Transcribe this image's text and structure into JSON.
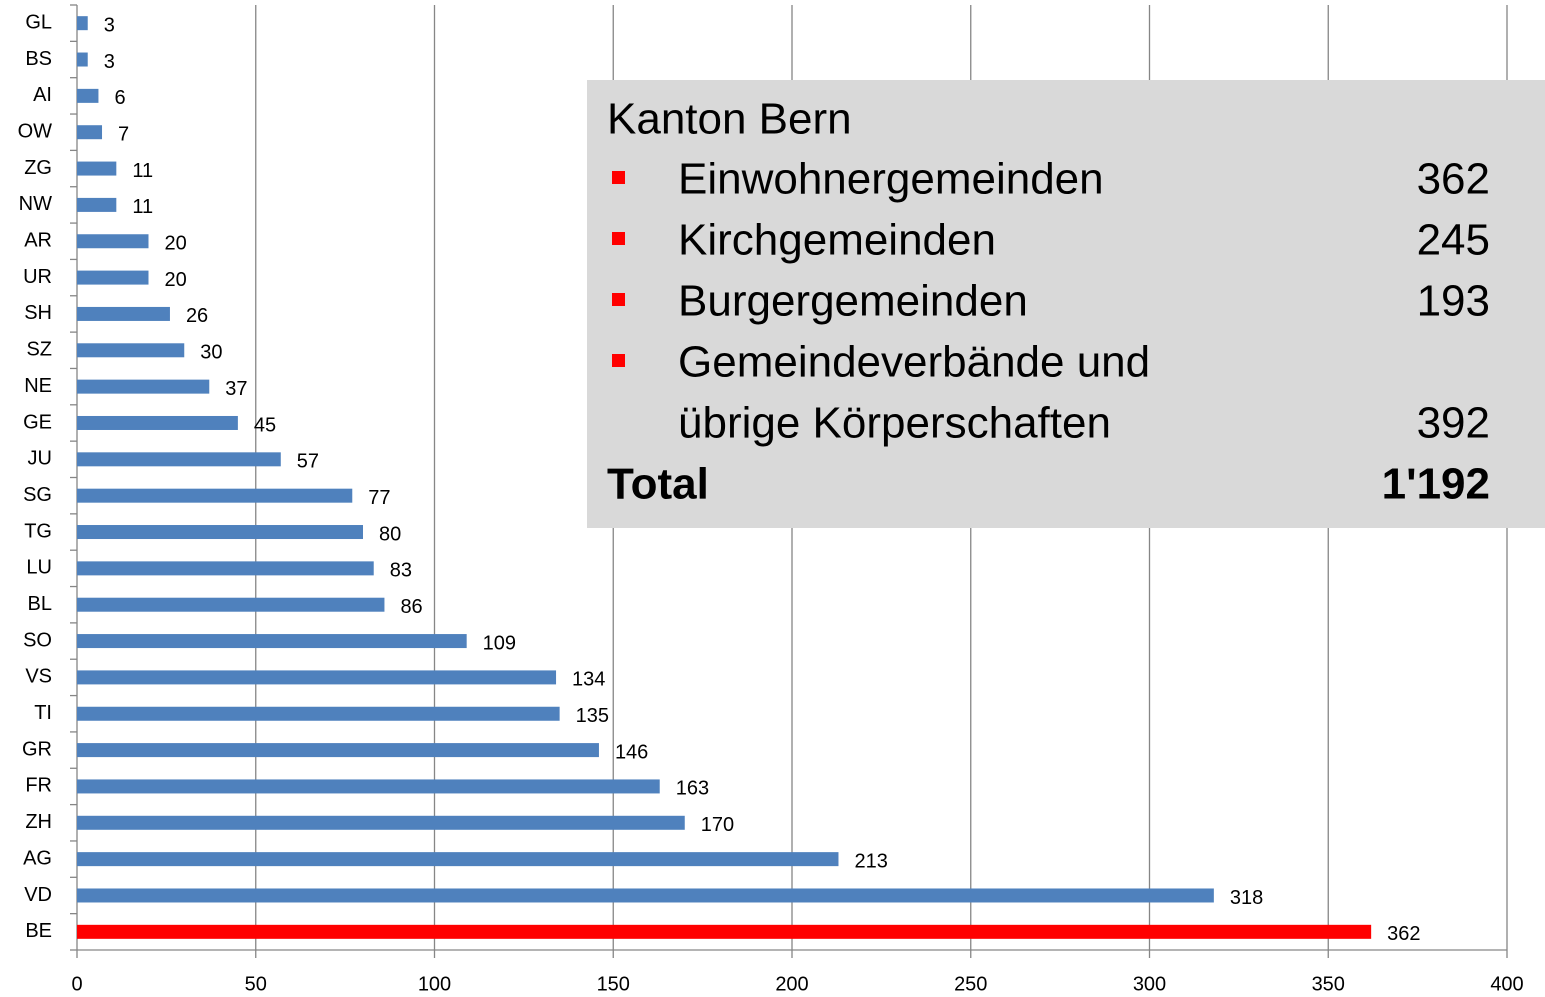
{
  "chart_data": {
    "type": "barh",
    "categories": [
      "GL",
      "BS",
      "AI",
      "OW",
      "ZG",
      "NW",
      "AR",
      "UR",
      "SH",
      "SZ",
      "NE",
      "GE",
      "JU",
      "SG",
      "TG",
      "LU",
      "BL",
      "SO",
      "VS",
      "TI",
      "GR",
      "FR",
      "ZH",
      "AG",
      "VD",
      "BE"
    ],
    "values": [
      3,
      3,
      6,
      7,
      11,
      11,
      20,
      20,
      26,
      30,
      37,
      45,
      57,
      77,
      80,
      83,
      86,
      109,
      134,
      135,
      146,
      163,
      170,
      213,
      318,
      362
    ],
    "colors": [
      "#4f81bd",
      "#4f81bd",
      "#4f81bd",
      "#4f81bd",
      "#4f81bd",
      "#4f81bd",
      "#4f81bd",
      "#4f81bd",
      "#4f81bd",
      "#4f81bd",
      "#4f81bd",
      "#4f81bd",
      "#4f81bd",
      "#4f81bd",
      "#4f81bd",
      "#4f81bd",
      "#4f81bd",
      "#4f81bd",
      "#4f81bd",
      "#4f81bd",
      "#4f81bd",
      "#4f81bd",
      "#4f81bd",
      "#4f81bd",
      "#4f81bd",
      "#ff0000"
    ],
    "xlim": [
      0,
      400
    ],
    "xticks": [
      0,
      50,
      100,
      150,
      200,
      250,
      300,
      350,
      400
    ],
    "grid": true,
    "annotation": {
      "title": "Kanton Bern",
      "items": [
        {
          "label": [
            "Einwohnergemeinden"
          ],
          "value": 362
        },
        {
          "label": [
            "Kirchgemeinden"
          ],
          "value": 245
        },
        {
          "label": [
            "Burgergemeinden"
          ],
          "value": 193
        },
        {
          "label": [
            "Gemeindeverbände und",
            "übrige Körperschaften"
          ],
          "value": 392
        }
      ],
      "total_label": "Total",
      "total": "1'192",
      "bullet_color": "#ff0000",
      "background": "#d9d9d9"
    }
  }
}
